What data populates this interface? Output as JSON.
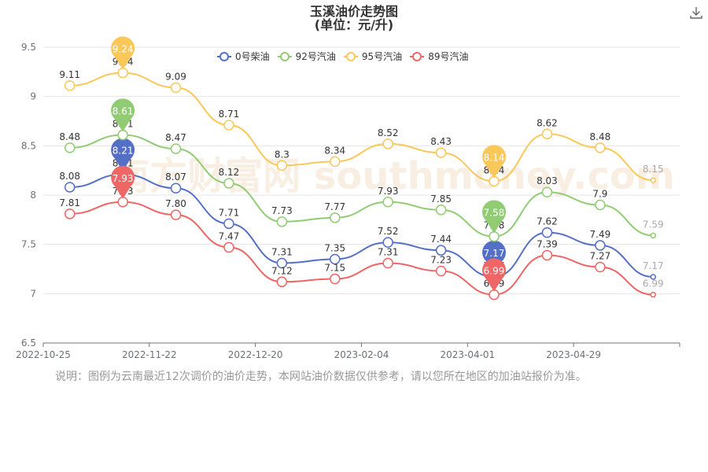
{
  "title": "玉溪油价走势图",
  "subtitle": "(单位：元/升)",
  "legend": [
    {
      "name": "0号柴油",
      "color": "#5470c6"
    },
    {
      "name": "92号汽油",
      "color": "#91cc75"
    },
    {
      "name": "95号汽油",
      "color": "#fac858"
    },
    {
      "name": "89号汽油",
      "color": "#ee6666"
    }
  ],
  "note": "说明：图例为云南最近12次调价的油价走势，本网站油价数据仅供参考，请以您所在地区的加油站报价为准。",
  "watermark": "南方财富网 southmoney.com",
  "download_icon": "download-icon",
  "chart_data": {
    "type": "line",
    "title": "玉溪油价走势图",
    "subtitle": "(单位：元/升)",
    "ylim": [
      6.5,
      9.5
    ],
    "yticks": [
      "6.5",
      "7",
      "7.5",
      "8",
      "8.5",
      "9",
      "9.5"
    ],
    "xticks": [
      "2022-10-25",
      "2022-11-22",
      "2022-12-20",
      "2023-02-04",
      "2023-04-01",
      "2023-04-29"
    ],
    "x_count": 12,
    "xtick_positions": [
      0,
      2,
      4,
      6,
      8,
      10
    ],
    "legend_position": "top",
    "grid": true,
    "series": [
      {
        "name": "0号柴油",
        "color": "#5470c6",
        "values": [
          8.08,
          8.21,
          8.07,
          7.71,
          7.31,
          7.35,
          7.52,
          7.44,
          7.17,
          7.62,
          7.49,
          7.17
        ],
        "labels": [
          "8.08",
          "8.21",
          "8.07",
          "7.71",
          "7.31",
          "7.35",
          "7.52",
          "7.44",
          "7.17",
          "7.62",
          "7.49",
          "7.17"
        ],
        "max_index": 1,
        "min_index": 8
      },
      {
        "name": "92号汽油",
        "color": "#91cc75",
        "values": [
          8.48,
          8.61,
          8.47,
          8.12,
          7.73,
          7.77,
          7.93,
          7.85,
          7.58,
          8.03,
          7.9,
          7.59
        ],
        "labels": [
          "8.48",
          "8.61",
          "8.47",
          "8.12",
          "7.73",
          "7.77",
          "7.93",
          "7.85",
          "7.58",
          "8.03",
          "7.9",
          "7.59"
        ],
        "max_index": 1,
        "min_index": 8
      },
      {
        "name": "95号汽油",
        "color": "#fac858",
        "values": [
          9.11,
          9.24,
          9.09,
          8.71,
          8.3,
          8.34,
          8.52,
          8.43,
          8.14,
          8.62,
          8.48,
          8.15
        ],
        "labels": [
          "9.11",
          "9.24",
          "9.09",
          "8.71",
          "8.3",
          "8.34",
          "8.52",
          "8.43",
          "8.14",
          "8.62",
          "8.48",
          "8.15"
        ],
        "max_index": 1,
        "min_index": 8
      },
      {
        "name": "89号汽油",
        "color": "#ee6666",
        "values": [
          7.81,
          7.93,
          7.8,
          7.47,
          7.12,
          7.15,
          7.31,
          7.23,
          6.99,
          7.39,
          7.27,
          6.99
        ],
        "labels": [
          "7.81",
          "7.93",
          "7.80",
          "7.47",
          "7.12",
          "7.15",
          "7.31",
          "7.23",
          "6.99",
          "7.39",
          "7.27",
          "6.99"
        ],
        "max_index": 1,
        "min_index": 8
      }
    ]
  }
}
